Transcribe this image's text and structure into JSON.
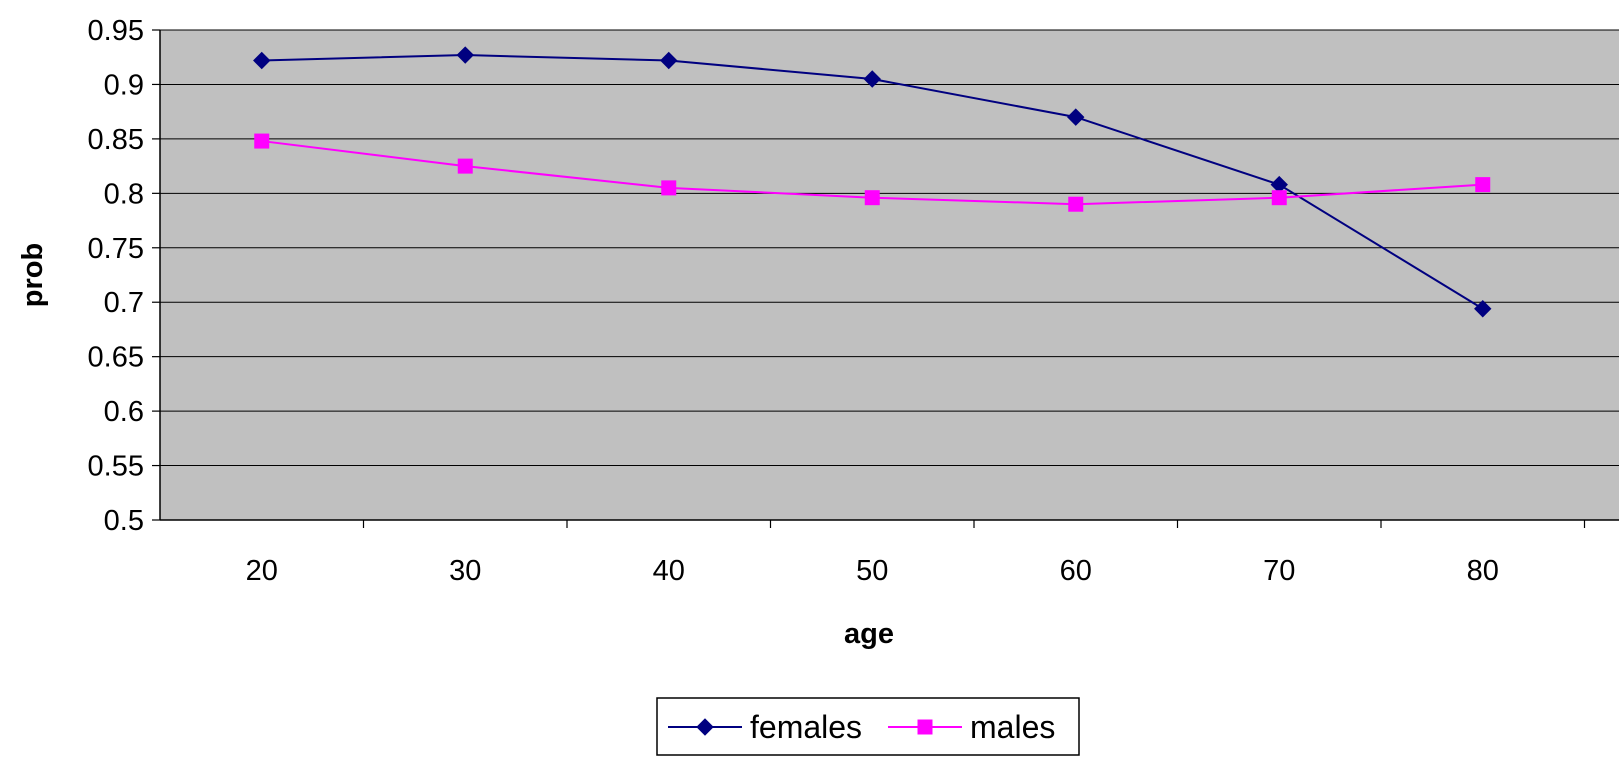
{
  "chart_data": {
    "type": "line",
    "title": "",
    "xlabel": "age",
    "ylabel": "prob",
    "categories": [
      "20",
      "30",
      "40",
      "50",
      "60",
      "70",
      "80"
    ],
    "ylim": [
      0.5,
      0.95
    ],
    "yticks": [
      "0.5",
      "0.55",
      "0.6",
      "0.65",
      "0.7",
      "0.75",
      "0.8",
      "0.85",
      "0.9",
      "0.95"
    ],
    "grid": "horizontal",
    "legend_position": "bottom",
    "plot_background": "#C0C0C0",
    "series": [
      {
        "name": "females",
        "color": "#000080",
        "marker": "diamond",
        "values": [
          0.922,
          0.927,
          0.922,
          0.905,
          0.87,
          0.808,
          0.694
        ]
      },
      {
        "name": "males",
        "color": "#FF00FF",
        "marker": "square",
        "values": [
          0.848,
          0.825,
          0.805,
          0.796,
          0.79,
          0.796,
          0.808
        ]
      }
    ]
  }
}
